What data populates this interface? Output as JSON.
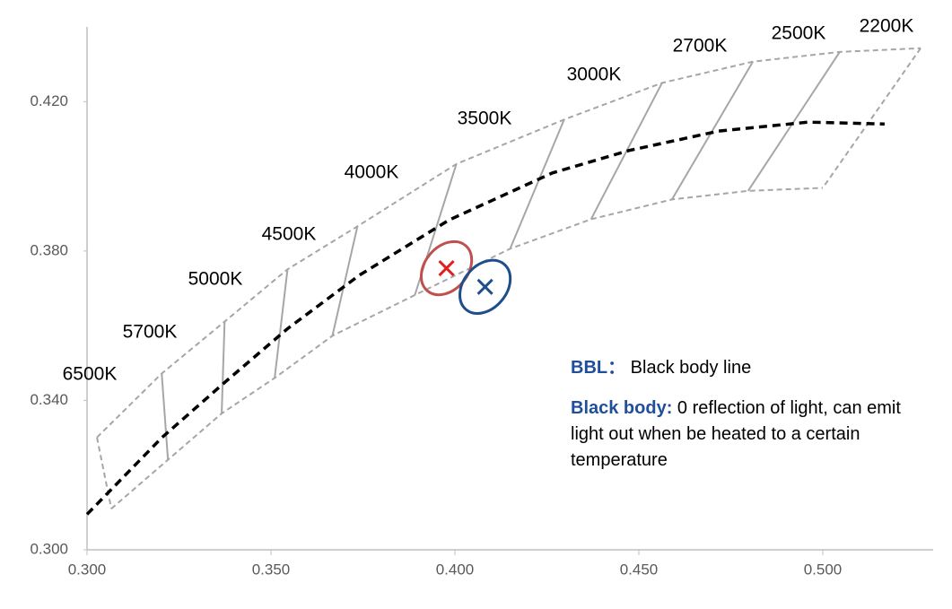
{
  "chart_data": {
    "type": "line",
    "xlim": [
      0.3,
      0.53
    ],
    "ylim": [
      0.3,
      0.44
    ],
    "xticks": [
      {
        "value": 0.3,
        "label": "0.300"
      },
      {
        "value": 0.35,
        "label": "0.350"
      },
      {
        "value": 0.4,
        "label": "0.400"
      },
      {
        "value": 0.45,
        "label": "0.450"
      },
      {
        "value": 0.5,
        "label": "0.500"
      }
    ],
    "yticks": [
      {
        "value": 0.3,
        "label": "0.300"
      },
      {
        "value": 0.34,
        "label": "0.340"
      },
      {
        "value": 0.38,
        "label": "0.380"
      },
      {
        "value": 0.42,
        "label": "0.420"
      }
    ],
    "series": [
      {
        "color": "#000000",
        "dashed": true,
        "x": [
          0.3,
          0.3203,
          0.3374,
          0.3545,
          0.374,
          0.3984,
          0.4265,
          0.4473,
          0.4717,
          0.496,
          0.5168
        ],
        "values": [
          0.3095,
          0.33,
          0.3448,
          0.3592,
          0.3735,
          0.3883,
          0.4009,
          0.4069,
          0.4121,
          0.4145,
          0.414
        ]
      }
    ],
    "bins_color": "#a6a6a6",
    "bins_upper": {
      "x": [
        0.3027,
        0.3203,
        0.3374,
        0.3545,
        0.3735,
        0.4004,
        0.4297,
        0.4563,
        0.481,
        0.5046,
        0.5266
      ],
      "values": [
        0.3301,
        0.3472,
        0.3611,
        0.3751,
        0.3866,
        0.4033,
        0.4152,
        0.425,
        0.4307,
        0.4333,
        0.4343
      ]
    },
    "bins_lower": {
      "x": [
        0.3066,
        0.322,
        0.3366,
        0.351,
        0.3667,
        0.3891,
        0.415,
        0.437,
        0.459,
        0.4797,
        0.5
      ],
      "values": [
        0.311,
        0.3241,
        0.3365,
        0.346,
        0.3573,
        0.3682,
        0.3806,
        0.3885,
        0.3938,
        0.3961,
        0.3969
      ]
    },
    "cct_labels": [
      "6500K",
      "5700K",
      "5000K",
      "4500K",
      "4000K",
      "3500K",
      "3000K",
      "2700K",
      "2500K",
      "2200K"
    ],
    "points": [
      {
        "x": 0.3977,
        "y": 0.3754,
        "color": "#e02020",
        "ring": "#c0504d"
      },
      {
        "x": 0.4082,
        "y": 0.3704,
        "color": "#1f4e8c",
        "ring": "#1f4e8c"
      }
    ],
    "annotations": [
      {
        "term": "BBL：",
        "text": "Black body line"
      },
      {
        "term": "Black body:",
        "text": "0 reflection of light, can emit light out when be heated to a certain temperature"
      }
    ]
  }
}
